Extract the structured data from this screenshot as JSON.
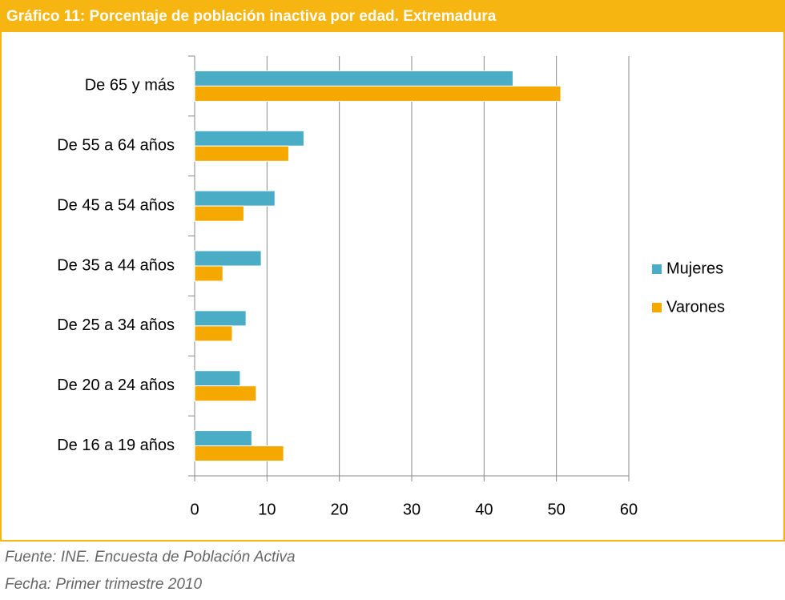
{
  "chart_data": {
    "type": "bar",
    "orientation": "horizontal",
    "title": "Gráfico 11: Porcentaje de población inactiva por edad. Extremadura",
    "categories": [
      "De 65 y más",
      "De 55 a 64 años",
      "De 45 a 54 años",
      "De 35 a 44 años",
      "De 25 a 34 años",
      "De 20 a 24 años",
      "De 16 a 19 años"
    ],
    "series": [
      {
        "name": "Mujeres",
        "color": "#4bacc6",
        "values": [
          44.0,
          15.1,
          11.1,
          9.2,
          7.1,
          6.3,
          7.9
        ]
      },
      {
        "name": "Varones",
        "color": "#f5a800",
        "values": [
          50.6,
          13.0,
          6.8,
          3.9,
          5.2,
          8.5,
          12.3
        ]
      }
    ],
    "xlim": [
      0,
      60
    ],
    "xticks": [
      0,
      10,
      20,
      30,
      40,
      50,
      60
    ],
    "grid": true,
    "legend": "right"
  },
  "footer": [
    "Fuente: INE. Encuesta de Población Activa",
    "Fecha: Primer trimestre 2010"
  ]
}
